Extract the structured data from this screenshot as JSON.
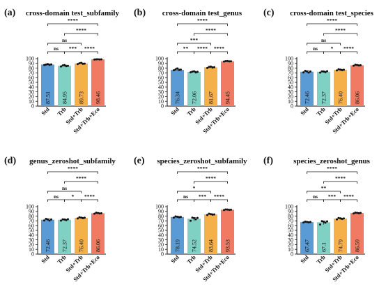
{
  "colors": {
    "Std": "#5b9bd5",
    "Trb": "#7fd1c4",
    "Std+Trb": "#f6b04a",
    "Std+Trb+Eco": "#f07a62"
  },
  "chart_data": [
    {
      "type": "bar",
      "label": "(a)",
      "title": "cross-domain test_subfamily",
      "categories": [
        "Std",
        "Trb",
        "Std+Trb",
        "Std+Trb+Eco"
      ],
      "values": [
        87.51,
        84.95,
        89.73,
        98.46
      ],
      "value_labels": [
        "87.51",
        "84.95",
        "89.73",
        "98.46"
      ],
      "points": [
        [
          86.5,
          87.5,
          88.6,
          86.9,
          87.9
        ],
        [
          83.4,
          85.7,
          86.6,
          84.2,
          84.9
        ],
        [
          88.6,
          90.3,
          91.1,
          89.2,
          89.5
        ],
        [
          98.1,
          98.6,
          98.8,
          98.3,
          98.5
        ]
      ],
      "ylim": [
        0,
        100
      ],
      "yticks": [
        0,
        10,
        20,
        30,
        40,
        50,
        60,
        70,
        80,
        90,
        100
      ],
      "significance": [
        {
          "pair": [
            2,
            3
          ],
          "label": "****"
        },
        {
          "pair": [
            1,
            2
          ],
          "label": "***"
        },
        {
          "pair": [
            0,
            1
          ],
          "label": "ns"
        },
        {
          "pair": [
            0,
            2
          ],
          "label": "ns"
        },
        {
          "pair": [
            1,
            3
          ],
          "label": "****"
        },
        {
          "pair": [
            0,
            3
          ],
          "label": "****"
        }
      ]
    },
    {
      "type": "bar",
      "label": "(b)",
      "title": "cross-domain test_genus",
      "categories": [
        "Std",
        "Trb",
        "Std+Trb",
        "Std+Trb+Eco"
      ],
      "values": [
        76.34,
        72.06,
        81.67,
        94.45
      ],
      "value_labels": [
        "76.34",
        "72.06",
        "81.67",
        "94.45"
      ],
      "points": [
        [
          75.6,
          77.2,
          79.4,
          76.1,
          76.8
        ],
        [
          71.2,
          72.6,
          73.4,
          70.9,
          72.3
        ],
        [
          80.4,
          82.6,
          83.3,
          81.2,
          81.9
        ],
        [
          94.0,
          94.8,
          95.0,
          94.3,
          94.5
        ]
      ],
      "ylim": [
        0,
        100
      ],
      "yticks": [
        0,
        10,
        20,
        30,
        40,
        50,
        60,
        70,
        80,
        90,
        100
      ],
      "significance": [
        {
          "pair": [
            0,
            1
          ],
          "label": "**"
        },
        {
          "pair": [
            1,
            2
          ],
          "label": "****"
        },
        {
          "pair": [
            2,
            3
          ],
          "label": "****"
        },
        {
          "pair": [
            0,
            2
          ],
          "label": "***"
        },
        {
          "pair": [
            1,
            3
          ],
          "label": "****"
        },
        {
          "pair": [
            0,
            3
          ],
          "label": "****"
        }
      ]
    },
    {
      "type": "bar",
      "label": "(c)",
      "title": "cross-domain test_species",
      "categories": [
        "Std",
        "Trb",
        "Std+Trb",
        "Std+Trb+Eco"
      ],
      "values": [
        72.46,
        72.37,
        76.4,
        86.06
      ],
      "value_labels": [
        "72.46",
        "72.37",
        "76.40",
        "86.06"
      ],
      "points": [
        [
          71.0,
          74.2,
          73.1,
          70.8,
          72.9
        ],
        [
          70.6,
          73.2,
          72.9,
          71.5,
          73.6
        ],
        [
          75.1,
          77.6,
          76.9,
          75.8,
          76.6
        ],
        [
          85.2,
          87.1,
          86.5,
          85.7,
          86.0
        ]
      ],
      "ylim": [
        0,
        100
      ],
      "yticks": [
        0,
        10,
        20,
        30,
        40,
        50,
        60,
        70,
        80,
        90,
        100
      ],
      "significance": [
        {
          "pair": [
            0,
            1
          ],
          "label": "ns"
        },
        {
          "pair": [
            1,
            2
          ],
          "label": "*"
        },
        {
          "pair": [
            2,
            3
          ],
          "label": "****"
        },
        {
          "pair": [
            0,
            2
          ],
          "label": "ns"
        },
        {
          "pair": [
            1,
            3
          ],
          "label": "****"
        },
        {
          "pair": [
            0,
            3
          ],
          "label": "****"
        }
      ]
    },
    {
      "type": "bar",
      "label": "(d)",
      "title": "genus_zeroshot_subfamily",
      "categories": [
        "Std",
        "Trb",
        "Std+Trb",
        "Std+Trb+Eco"
      ],
      "values": [
        72.46,
        72.37,
        76.4,
        86.06
      ],
      "value_labels": [
        "72.46",
        "72.37",
        "76.40",
        "86.06"
      ],
      "points": [
        [
          71.0,
          74.2,
          73.1,
          70.8,
          72.9
        ],
        [
          70.6,
          73.2,
          72.9,
          71.5,
          73.6
        ],
        [
          75.1,
          77.6,
          76.9,
          75.8,
          76.6
        ],
        [
          85.2,
          87.1,
          86.5,
          85.7,
          86.0
        ]
      ],
      "ylim": [
        0,
        100
      ],
      "yticks": [
        0,
        10,
        20,
        30,
        40,
        50,
        60,
        70,
        80,
        90,
        100
      ],
      "significance": [
        {
          "pair": [
            0,
            1
          ],
          "label": "ns"
        },
        {
          "pair": [
            1,
            2
          ],
          "label": "*"
        },
        {
          "pair": [
            2,
            3
          ],
          "label": "****"
        },
        {
          "pair": [
            0,
            2
          ],
          "label": "ns"
        },
        {
          "pair": [
            1,
            3
          ],
          "label": "****"
        },
        {
          "pair": [
            0,
            3
          ],
          "label": "****"
        }
      ]
    },
    {
      "type": "bar",
      "label": "(e)",
      "title": "species_zeroshot_subfamily",
      "categories": [
        "Std",
        "Trb",
        "Std+Trb",
        "Std+Trb+Eco"
      ],
      "values": [
        78.19,
        74.52,
        83.64,
        93.53
      ],
      "value_labels": [
        "78.19",
        "74.52",
        "83.64",
        "93.53"
      ],
      "points": [
        [
          76.9,
          79.4,
          78.6,
          77.5,
          78.3
        ],
        [
          70.2,
          76.8,
          75.9,
          73.4,
          76.3
        ],
        [
          82.3,
          85.1,
          84.2,
          83.0,
          83.6
        ],
        [
          92.8,
          94.1,
          93.9,
          93.2,
          93.6
        ]
      ],
      "ylim": [
        0,
        100
      ],
      "yticks": [
        0,
        10,
        20,
        30,
        40,
        50,
        60,
        70,
        80,
        90,
        100
      ],
      "significance": [
        {
          "pair": [
            0,
            1
          ],
          "label": "ns"
        },
        {
          "pair": [
            1,
            2
          ],
          "label": "***"
        },
        {
          "pair": [
            2,
            3
          ],
          "label": "****"
        },
        {
          "pair": [
            0,
            2
          ],
          "label": "*"
        },
        {
          "pair": [
            1,
            3
          ],
          "label": "****"
        },
        {
          "pair": [
            0,
            3
          ],
          "label": "****"
        }
      ]
    },
    {
      "type": "bar",
      "label": "(f)",
      "title": "species_zeroshot_genus",
      "categories": [
        "Std",
        "Trb",
        "Std+Trb",
        "Std+Trb+Eco"
      ],
      "values": [
        67.47,
        67.1,
        74.79,
        86.59
      ],
      "value_labels": [
        "67.47",
        "67.1",
        "74.79",
        "86.59"
      ],
      "points": [
        [
          66.5,
          68.3,
          67.8,
          66.9,
          67.6
        ],
        [
          62.4,
          69.5,
          68.2,
          66.1,
          69.0
        ],
        [
          73.2,
          76.1,
          75.3,
          74.0,
          75.2
        ],
        [
          85.6,
          87.4,
          86.9,
          86.1,
          86.8
        ]
      ],
      "ylim": [
        0,
        100
      ],
      "yticks": [
        0,
        10,
        20,
        30,
        40,
        50,
        60,
        70,
        80,
        90,
        100
      ],
      "significance": [
        {
          "pair": [
            0,
            1
          ],
          "label": "ns"
        },
        {
          "pair": [
            1,
            2
          ],
          "label": "***"
        },
        {
          "pair": [
            2,
            3
          ],
          "label": "****"
        },
        {
          "pair": [
            0,
            2
          ],
          "label": "**"
        },
        {
          "pair": [
            1,
            3
          ],
          "label": "****"
        },
        {
          "pair": [
            0,
            3
          ],
          "label": "****"
        }
      ]
    }
  ]
}
